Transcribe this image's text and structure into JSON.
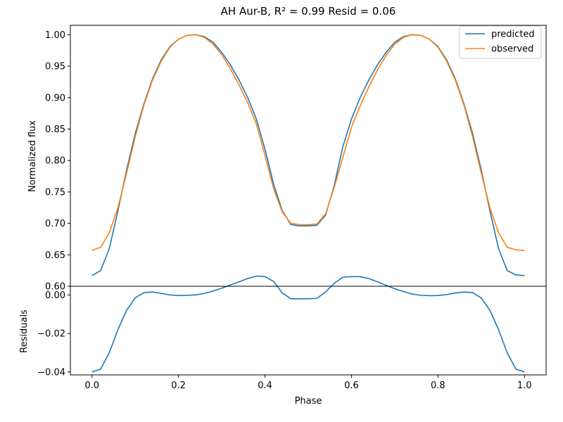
{
  "figure": {
    "title": "AH Aur-B, R² = 0.99 Resid = 0.06"
  },
  "chart_data": [
    {
      "type": "line",
      "name": "flux",
      "title": "AH Aur-B, R² = 0.99 Resid = 0.06",
      "xlabel": "",
      "ylabel": "Normalized flux",
      "xlim": [
        -0.05,
        1.05
      ],
      "ylim": [
        0.6,
        1.015
      ],
      "x_ticks": [],
      "y_ticks": [
        "0.60",
        "0.65",
        "0.70",
        "0.75",
        "0.80",
        "0.85",
        "0.90",
        "0.95",
        "1.00"
      ],
      "legend": {
        "placement": "top-right",
        "entries": [
          "predicted",
          "observed"
        ]
      },
      "grid": false,
      "x": [
        0.0,
        0.02,
        0.04,
        0.06,
        0.08,
        0.1,
        0.12,
        0.14,
        0.16,
        0.18,
        0.2,
        0.22,
        0.24,
        0.26,
        0.28,
        0.3,
        0.32,
        0.34,
        0.36,
        0.38,
        0.4,
        0.42,
        0.44,
        0.46,
        0.48,
        0.5,
        0.52,
        0.54,
        0.56,
        0.58,
        0.6,
        0.62,
        0.64,
        0.66,
        0.68,
        0.7,
        0.72,
        0.74,
        0.76,
        0.78,
        0.8,
        0.82,
        0.84,
        0.86,
        0.88,
        0.9,
        0.92,
        0.94,
        0.96,
        0.98,
        1.0
      ],
      "series": [
        {
          "name": "predicted",
          "color": "#1f77b4",
          "values": [
            0.617,
            0.625,
            0.66,
            0.72,
            0.785,
            0.843,
            0.89,
            0.93,
            0.96,
            0.981,
            0.993,
            0.999,
            1.0,
            0.997,
            0.988,
            0.972,
            0.952,
            0.928,
            0.9,
            0.866,
            0.818,
            0.762,
            0.72,
            0.698,
            0.696,
            0.696,
            0.697,
            0.713,
            0.76,
            0.822,
            0.866,
            0.9,
            0.928,
            0.952,
            0.972,
            0.988,
            0.997,
            1.0,
            0.999,
            0.993,
            0.981,
            0.96,
            0.93,
            0.89,
            0.843,
            0.785,
            0.72,
            0.66,
            0.625,
            0.618,
            0.617
          ]
        },
        {
          "name": "observed",
          "color": "#ff7f0e",
          "values": [
            0.657,
            0.662,
            0.685,
            0.725,
            0.78,
            0.838,
            0.888,
            0.928,
            0.958,
            0.98,
            0.993,
            0.999,
            1.0,
            0.996,
            0.985,
            0.968,
            0.946,
            0.92,
            0.892,
            0.858,
            0.808,
            0.755,
            0.718,
            0.7,
            0.698,
            0.698,
            0.699,
            0.715,
            0.757,
            0.805,
            0.853,
            0.887,
            0.917,
            0.944,
            0.967,
            0.985,
            0.996,
            1.0,
            0.999,
            0.993,
            0.98,
            0.958,
            0.928,
            0.888,
            0.838,
            0.78,
            0.725,
            0.685,
            0.662,
            0.658,
            0.657
          ]
        }
      ]
    },
    {
      "type": "line",
      "name": "residuals",
      "title": "",
      "xlabel": "Phase",
      "ylabel": "Residuals",
      "xlim": [
        -0.05,
        1.05
      ],
      "ylim": [
        -0.0415,
        0.0045
      ],
      "x_ticks": [
        "0.0",
        "0.2",
        "0.4",
        "0.6",
        "0.8",
        "1.0"
      ],
      "y_ticks": [
        "−0.04",
        "−0.02",
        "0.00"
      ],
      "grid": false,
      "x": [
        0.0,
        0.02,
        0.04,
        0.06,
        0.08,
        0.1,
        0.12,
        0.14,
        0.16,
        0.18,
        0.2,
        0.22,
        0.24,
        0.26,
        0.28,
        0.3,
        0.32,
        0.34,
        0.36,
        0.38,
        0.4,
        0.42,
        0.44,
        0.46,
        0.48,
        0.5,
        0.52,
        0.54,
        0.56,
        0.58,
        0.6,
        0.62,
        0.64,
        0.66,
        0.68,
        0.7,
        0.72,
        0.74,
        0.76,
        0.78,
        0.8,
        0.82,
        0.84,
        0.86,
        0.88,
        0.9,
        0.92,
        0.94,
        0.96,
        0.98,
        1.0
      ],
      "series": [
        {
          "name": "",
          "color": "#1f77b4",
          "values": [
            -0.04,
            -0.0385,
            -0.03,
            -0.018,
            -0.008,
            -0.0015,
            0.0012,
            0.0015,
            0.0008,
            0.0,
            -0.0003,
            -0.0002,
            0.0,
            0.0008,
            0.002,
            0.0035,
            0.0052,
            0.0068,
            0.0085,
            0.0098,
            0.0095,
            0.007,
            0.001,
            -0.002,
            -0.002,
            -0.002,
            -0.0018,
            0.0015,
            0.006,
            0.0092,
            0.0095,
            0.0095,
            0.0085,
            0.0068,
            0.005,
            0.0032,
            0.0018,
            0.0005,
            -0.0002,
            -0.0004,
            -0.0003,
            0.0002,
            0.001,
            0.0015,
            0.0012,
            -0.0015,
            -0.008,
            -0.018,
            -0.03,
            -0.0385,
            -0.04
          ]
        }
      ]
    }
  ]
}
